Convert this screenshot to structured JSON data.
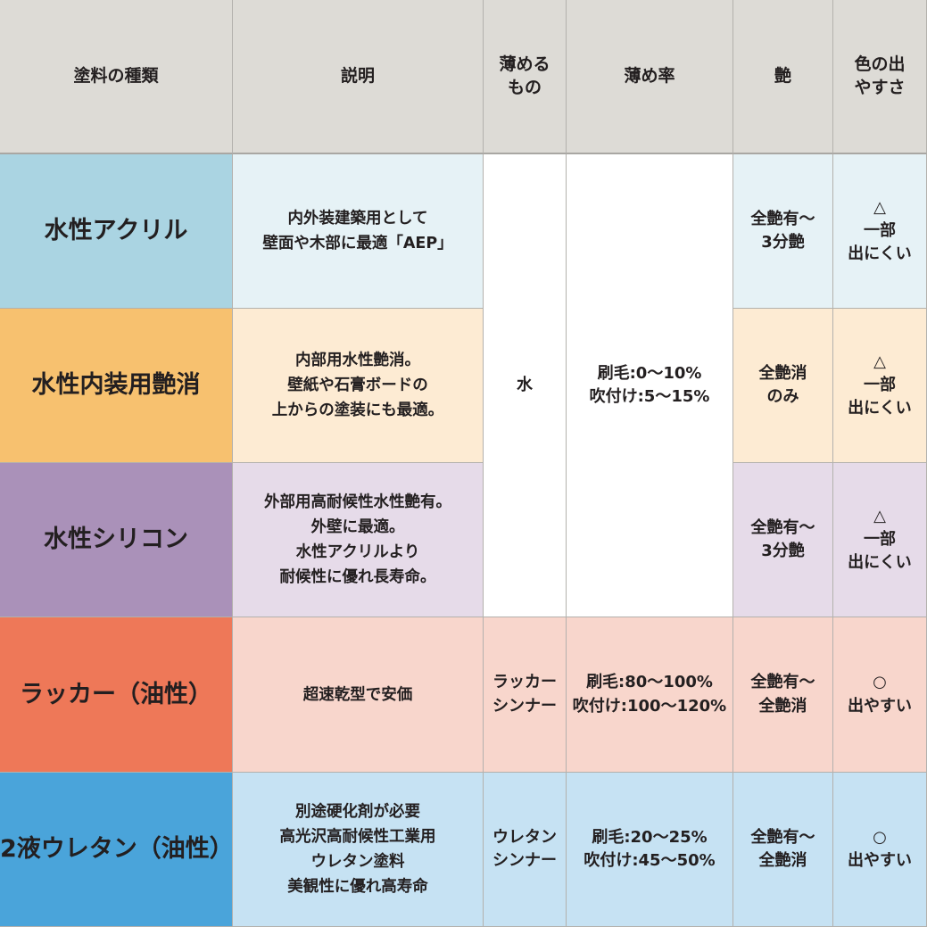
{
  "headers": [
    "塗料の種類",
    "説明",
    "薄める\nもの",
    "薄め率",
    "艶",
    "色の出\nやすさ"
  ],
  "merged": {
    "thinner": "水",
    "rate": "刷毛:0〜10%\n吹付け:5〜15%"
  },
  "rows": [
    {
      "type": "水性アクリル",
      "desc": "内外装建築用として\n壁面や木部に最適「AEP」",
      "gloss": "全艶有〜\n3分艶",
      "color_ease": "△\n一部\n出にくい",
      "color_dark": "#aad4e2",
      "color_light": "#e6f2f6"
    },
    {
      "type": "水性内装用艶消",
      "desc": "内部用水性艶消。\n壁紙や石膏ボードの\n上からの塗装にも最適。",
      "gloss": "全艶消\nのみ",
      "color_ease": "△\n一部\n出にくい",
      "color_dark": "#f7c16f",
      "color_light": "#fdebd3"
    },
    {
      "type": "水性シリコン",
      "desc": "外部用高耐候性水性艶有。\n外壁に最適。\n水性アクリルより\n耐候性に優れ長寿命。",
      "gloss": "全艶有〜\n3分艶",
      "color_ease": "△\n一部\n出にくい",
      "color_dark": "#aa91b9",
      "color_light": "#e6dbe9"
    },
    {
      "type": "ラッカー（油性）",
      "desc": "超速乾型で安価",
      "thinner": "ラッカー\nシンナー",
      "rate": "刷毛:80〜100%\n吹付け:100〜120%",
      "gloss": "全艶有〜\n全艶消",
      "color_ease": "○\n出やすい",
      "color_dark": "#ee7858",
      "color_light": "#f8d6cc"
    },
    {
      "type": "2液ウレタン（油性）",
      "desc": "別途硬化剤が必要\n高光沢高耐候性工業用\nウレタン塗料\n美観性に優れ高寿命",
      "thinner": "ウレタン\nシンナー",
      "rate": "刷毛:20〜25%\n吹付け:45〜50%",
      "gloss": "全艶有〜\n全艶消",
      "color_ease": "○\n出やすい",
      "color_dark": "#4aa4da",
      "color_light": "#c6e2f3"
    }
  ]
}
